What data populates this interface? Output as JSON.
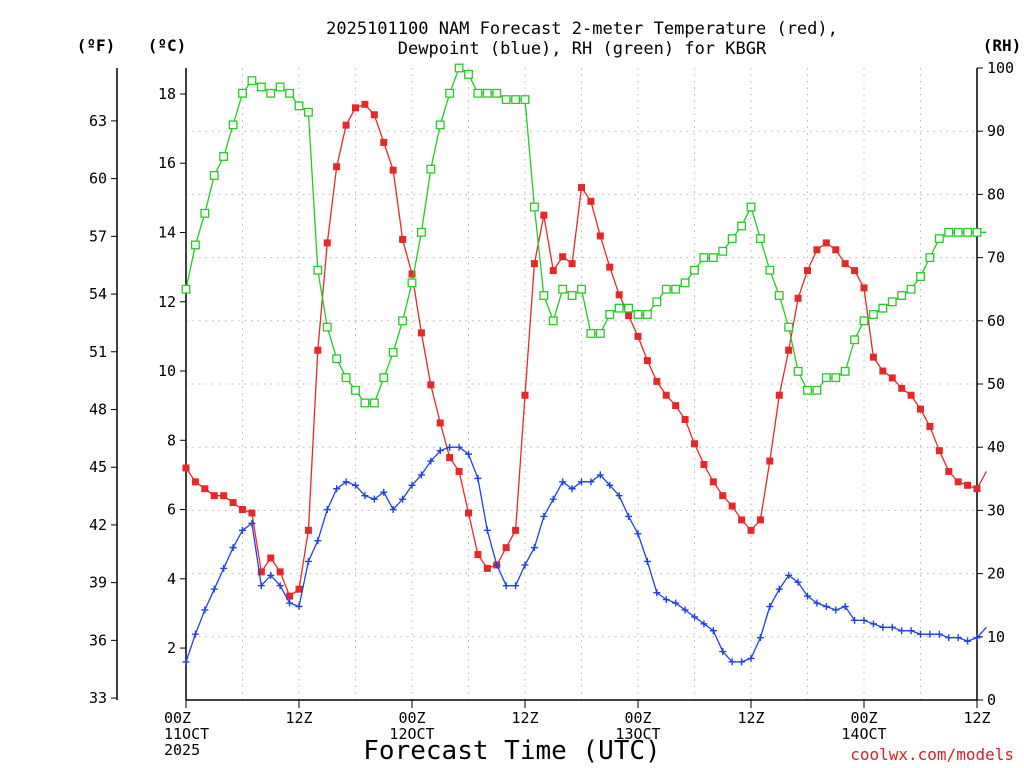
{
  "chart_data": {
    "type": "line",
    "title_line1": "2025101100 NAM Forecast 2-meter Temperature (red),",
    "title_line2": "Dewpoint (blue), RH (green) for KBGR",
    "xlabel": "Forecast Time (UTC)",
    "credit": "coolwx.com/models",
    "left_axis_f": {
      "unit_label": "(ºF)",
      "ticks": [
        33,
        36,
        39,
        42,
        45,
        48,
        51,
        54,
        57,
        60,
        63
      ]
    },
    "left_axis_c": {
      "unit_label": "(ºC)",
      "ylim": [
        0.5,
        18.75
      ],
      "ticks": [
        2,
        4,
        6,
        8,
        10,
        12,
        14,
        16,
        18
      ]
    },
    "right_axis_rh": {
      "unit_label": "(RH)",
      "ylim": [
        0,
        100
      ],
      "ticks": [
        0,
        10,
        20,
        30,
        40,
        50,
        60,
        70,
        80,
        90,
        100
      ]
    },
    "x_axis": {
      "range_hours": [
        0,
        84
      ],
      "ticks": [
        {
          "hour": 0,
          "lines": [
            "00Z",
            "11OCT",
            "2025"
          ]
        },
        {
          "hour": 12,
          "lines": [
            "12Z"
          ]
        },
        {
          "hour": 24,
          "lines": [
            "00Z",
            "12OCT"
          ]
        },
        {
          "hour": 36,
          "lines": [
            "12Z"
          ]
        },
        {
          "hour": 48,
          "lines": [
            "00Z",
            "13OCT"
          ]
        },
        {
          "hour": 60,
          "lines": [
            "12Z"
          ]
        },
        {
          "hour": 72,
          "lines": [
            "00Z",
            "14OCT"
          ]
        },
        {
          "hour": 84,
          "lines": [
            "12Z"
          ]
        }
      ]
    },
    "series": [
      {
        "name": "Temperature",
        "unit": "°C",
        "color": "#e82828",
        "marker": "filled-square",
        "axis": "celsius",
        "points": [
          [
            0,
            7.2
          ],
          [
            1,
            6.8
          ],
          [
            2,
            6.6
          ],
          [
            3,
            6.4
          ],
          [
            4,
            6.4
          ],
          [
            5,
            6.2
          ],
          [
            6,
            6.0
          ],
          [
            7,
            5.9
          ],
          [
            8,
            4.2
          ],
          [
            9,
            4.6
          ],
          [
            10,
            4.2
          ],
          [
            11,
            3.5
          ],
          [
            12,
            3.7
          ],
          [
            13,
            5.4
          ],
          [
            14,
            10.6
          ],
          [
            15,
            13.7
          ],
          [
            16,
            15.9
          ],
          [
            17,
            17.1
          ],
          [
            18,
            17.6
          ],
          [
            19,
            17.7
          ],
          [
            20,
            17.4
          ],
          [
            21,
            16.6
          ],
          [
            22,
            15.8
          ],
          [
            23,
            13.8
          ],
          [
            24,
            12.8
          ],
          [
            25,
            11.1
          ],
          [
            26,
            9.6
          ],
          [
            27,
            8.5
          ],
          [
            28,
            7.5
          ],
          [
            29,
            7.1
          ],
          [
            30,
            5.9
          ],
          [
            31,
            4.7
          ],
          [
            32,
            4.3
          ],
          [
            33,
            4.4
          ],
          [
            34,
            4.9
          ],
          [
            35,
            5.4
          ],
          [
            36,
            9.3
          ],
          [
            37,
            13.1
          ],
          [
            38,
            14.5
          ],
          [
            39,
            12.9
          ],
          [
            40,
            13.3
          ],
          [
            41,
            13.1
          ],
          [
            42,
            15.3
          ],
          [
            43,
            14.9
          ],
          [
            44,
            13.9
          ],
          [
            45,
            13.0
          ],
          [
            46,
            12.2
          ],
          [
            47,
            11.6
          ],
          [
            48,
            11.0
          ],
          [
            49,
            10.3
          ],
          [
            50,
            9.7
          ],
          [
            51,
            9.3
          ],
          [
            52,
            9.0
          ],
          [
            53,
            8.6
          ],
          [
            54,
            7.9
          ],
          [
            55,
            7.3
          ],
          [
            56,
            6.8
          ],
          [
            57,
            6.4
          ],
          [
            58,
            6.1
          ],
          [
            59,
            5.7
          ],
          [
            60,
            5.4
          ],
          [
            61,
            5.7
          ],
          [
            62,
            7.4
          ],
          [
            63,
            9.3
          ],
          [
            64,
            10.6
          ],
          [
            65,
            12.1
          ],
          [
            66,
            12.9
          ],
          [
            67,
            13.5
          ],
          [
            68,
            13.7
          ],
          [
            69,
            13.5
          ],
          [
            70,
            13.1
          ],
          [
            71,
            12.9
          ],
          [
            72,
            12.4
          ],
          [
            73,
            10.4
          ],
          [
            74,
            10.0
          ],
          [
            75,
            9.8
          ],
          [
            76,
            9.5
          ],
          [
            77,
            9.3
          ],
          [
            78,
            8.9
          ],
          [
            79,
            8.4
          ],
          [
            80,
            7.7
          ],
          [
            81,
            7.1
          ],
          [
            82,
            6.8
          ],
          [
            83,
            6.7
          ],
          [
            84,
            6.6
          ],
          [
            85,
            7.1
          ]
        ]
      },
      {
        "name": "Dewpoint",
        "unit": "°C",
        "color": "#2040e8",
        "marker": "plus",
        "axis": "celsius",
        "points": [
          [
            0,
            1.6
          ],
          [
            1,
            2.4
          ],
          [
            2,
            3.1
          ],
          [
            3,
            3.7
          ],
          [
            4,
            4.3
          ],
          [
            5,
            4.9
          ],
          [
            6,
            5.4
          ],
          [
            7,
            5.6
          ],
          [
            8,
            3.8
          ],
          [
            9,
            4.1
          ],
          [
            10,
            3.8
          ],
          [
            11,
            3.3
          ],
          [
            12,
            3.2
          ],
          [
            13,
            4.5
          ],
          [
            14,
            5.1
          ],
          [
            15,
            6.0
          ],
          [
            16,
            6.6
          ],
          [
            17,
            6.8
          ],
          [
            18,
            6.7
          ],
          [
            19,
            6.4
          ],
          [
            20,
            6.3
          ],
          [
            21,
            6.5
          ],
          [
            22,
            6.0
          ],
          [
            23,
            6.3
          ],
          [
            24,
            6.7
          ],
          [
            25,
            7.0
          ],
          [
            26,
            7.4
          ],
          [
            27,
            7.7
          ],
          [
            28,
            7.8
          ],
          [
            29,
            7.8
          ],
          [
            30,
            7.6
          ],
          [
            31,
            6.9
          ],
          [
            32,
            5.4
          ],
          [
            33,
            4.4
          ],
          [
            34,
            3.8
          ],
          [
            35,
            3.8
          ],
          [
            36,
            4.4
          ],
          [
            37,
            4.9
          ],
          [
            38,
            5.8
          ],
          [
            39,
            6.3
          ],
          [
            40,
            6.8
          ],
          [
            41,
            6.6
          ],
          [
            42,
            6.8
          ],
          [
            43,
            6.8
          ],
          [
            44,
            7.0
          ],
          [
            45,
            6.7
          ],
          [
            46,
            6.4
          ],
          [
            47,
            5.8
          ],
          [
            48,
            5.3
          ],
          [
            49,
            4.5
          ],
          [
            50,
            3.6
          ],
          [
            51,
            3.4
          ],
          [
            52,
            3.3
          ],
          [
            53,
            3.1
          ],
          [
            54,
            2.9
          ],
          [
            55,
            2.7
          ],
          [
            56,
            2.5
          ],
          [
            57,
            1.9
          ],
          [
            58,
            1.6
          ],
          [
            59,
            1.6
          ],
          [
            60,
            1.7
          ],
          [
            61,
            2.3
          ],
          [
            62,
            3.2
          ],
          [
            63,
            3.7
          ],
          [
            64,
            4.1
          ],
          [
            65,
            3.9
          ],
          [
            66,
            3.5
          ],
          [
            67,
            3.3
          ],
          [
            68,
            3.2
          ],
          [
            69,
            3.1
          ],
          [
            70,
            3.2
          ],
          [
            71,
            2.8
          ],
          [
            72,
            2.8
          ],
          [
            73,
            2.7
          ],
          [
            74,
            2.6
          ],
          [
            75,
            2.6
          ],
          [
            76,
            2.5
          ],
          [
            77,
            2.5
          ],
          [
            78,
            2.4
          ],
          [
            79,
            2.4
          ],
          [
            80,
            2.4
          ],
          [
            81,
            2.3
          ],
          [
            82,
            2.3
          ],
          [
            83,
            2.2
          ],
          [
            84,
            2.3
          ],
          [
            85,
            2.6
          ]
        ]
      },
      {
        "name": "RH",
        "unit": "%",
        "color": "#22cc22",
        "marker": "open-square",
        "axis": "rh",
        "points": [
          [
            0,
            65
          ],
          [
            1,
            72
          ],
          [
            2,
            77
          ],
          [
            3,
            83
          ],
          [
            4,
            86
          ],
          [
            5,
            91
          ],
          [
            6,
            96
          ],
          [
            7,
            98
          ],
          [
            8,
            97
          ],
          [
            9,
            96
          ],
          [
            10,
            97
          ],
          [
            11,
            96
          ],
          [
            12,
            94
          ],
          [
            13,
            93
          ],
          [
            14,
            68
          ],
          [
            15,
            59
          ],
          [
            16,
            54
          ],
          [
            17,
            51
          ],
          [
            18,
            49
          ],
          [
            19,
            47
          ],
          [
            20,
            47
          ],
          [
            21,
            51
          ],
          [
            22,
            55
          ],
          [
            23,
            60
          ],
          [
            24,
            66
          ],
          [
            25,
            74
          ],
          [
            26,
            84
          ],
          [
            27,
            91
          ],
          [
            28,
            96
          ],
          [
            29,
            100
          ],
          [
            30,
            99
          ],
          [
            31,
            96
          ],
          [
            32,
            96
          ],
          [
            33,
            96
          ],
          [
            34,
            95
          ],
          [
            35,
            95
          ],
          [
            36,
            95
          ],
          [
            37,
            78
          ],
          [
            38,
            64
          ],
          [
            39,
            60
          ],
          [
            40,
            65
          ],
          [
            41,
            64
          ],
          [
            42,
            65
          ],
          [
            43,
            58
          ],
          [
            44,
            58
          ],
          [
            45,
            61
          ],
          [
            46,
            62
          ],
          [
            47,
            62
          ],
          [
            48,
            61
          ],
          [
            49,
            61
          ],
          [
            50,
            63
          ],
          [
            51,
            65
          ],
          [
            52,
            65
          ],
          [
            53,
            66
          ],
          [
            54,
            68
          ],
          [
            55,
            70
          ],
          [
            56,
            70
          ],
          [
            57,
            71
          ],
          [
            58,
            73
          ],
          [
            59,
            75
          ],
          [
            60,
            78
          ],
          [
            61,
            73
          ],
          [
            62,
            68
          ],
          [
            63,
            64
          ],
          [
            64,
            59
          ],
          [
            65,
            52
          ],
          [
            66,
            49
          ],
          [
            67,
            49
          ],
          [
            68,
            51
          ],
          [
            69,
            51
          ],
          [
            70,
            52
          ],
          [
            71,
            57
          ],
          [
            72,
            60
          ],
          [
            73,
            61
          ],
          [
            74,
            62
          ],
          [
            75,
            63
          ],
          [
            76,
            64
          ],
          [
            77,
            65
          ],
          [
            78,
            67
          ],
          [
            79,
            70
          ],
          [
            80,
            73
          ],
          [
            81,
            74
          ],
          [
            82,
            74
          ],
          [
            83,
            74
          ],
          [
            84,
            74
          ],
          [
            85,
            74
          ]
        ]
      }
    ]
  }
}
